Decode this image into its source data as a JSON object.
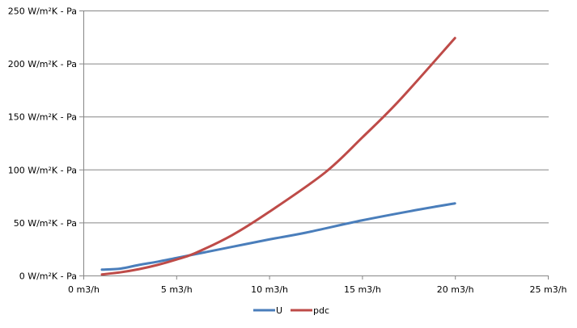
{
  "chart_data": {
    "type": "line",
    "title": "",
    "xlabel": "",
    "ylabel": "",
    "xlim": [
      0,
      25
    ],
    "ylim": [
      0,
      250
    ],
    "x_ticks": [
      0,
      5,
      10,
      15,
      20,
      25
    ],
    "x_tick_labels": [
      "0 m3/h",
      "5 m3/h",
      "10 m3/h",
      "15 m3/h",
      "20 m3/h",
      "25 m3/h"
    ],
    "y_ticks": [
      0,
      50,
      100,
      150,
      200,
      250
    ],
    "y_tick_labels": [
      "0 W/m²K - Pa",
      "50 W/m²K - Pa",
      "100 W/m²K - Pa",
      "150 W/m²K - Pa",
      "200 W/m²K - Pa",
      "250 W/m²K - Pa"
    ],
    "grid": "horizontal",
    "legend_position": "bottom",
    "series": [
      {
        "name": "U",
        "color": "#4a7ebb",
        "x": [
          1,
          2,
          3,
          4,
          5,
          6,
          8,
          10,
          12,
          15,
          18,
          20
        ],
        "y": [
          5.5,
          6.5,
          10,
          13,
          16.5,
          20,
          27,
          34,
          40.5,
          52,
          62,
          68
        ]
      },
      {
        "name": "pdc",
        "color": "#be4b48",
        "x": [
          1,
          2,
          3,
          4,
          5,
          6,
          8,
          10,
          13,
          15,
          17,
          20
        ],
        "y": [
          1,
          3,
          6,
          10,
          15,
          21,
          38,
          60,
          97,
          130,
          165,
          224
        ]
      }
    ]
  }
}
